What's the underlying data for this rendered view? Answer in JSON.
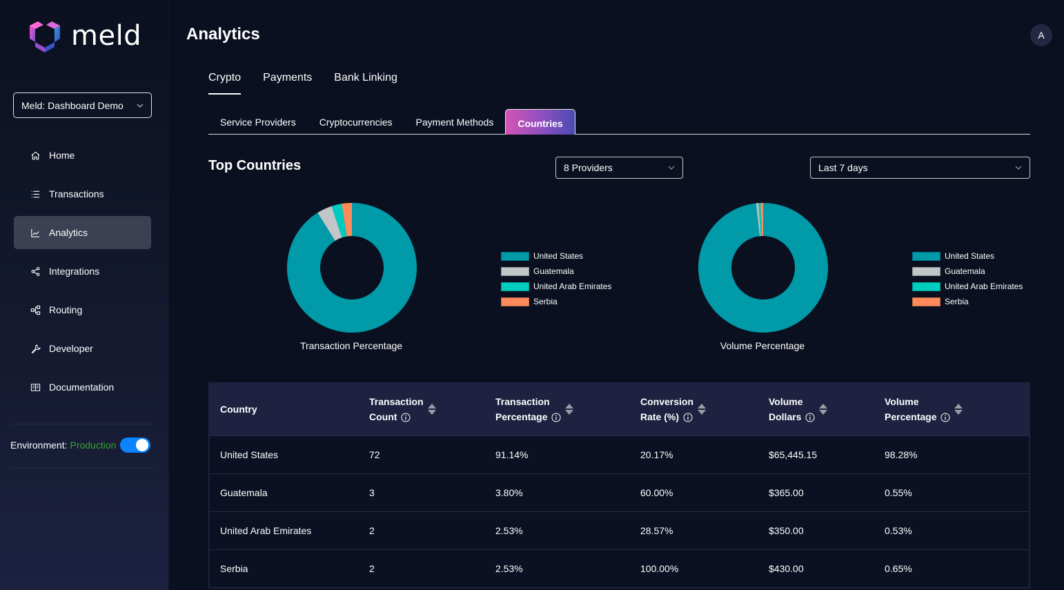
{
  "app": {
    "logo_text": "meld",
    "account_select": "Meld: Dashboard Demo",
    "avatar_initial": "A"
  },
  "sidebar": {
    "items": [
      {
        "label": "Home",
        "icon": "home-icon",
        "active": false
      },
      {
        "label": "Transactions",
        "icon": "list-icon",
        "active": false
      },
      {
        "label": "Analytics",
        "icon": "chart-line-icon",
        "active": true
      },
      {
        "label": "Integrations",
        "icon": "share-nodes-icon",
        "active": false
      },
      {
        "label": "Routing",
        "icon": "routing-icon",
        "active": false
      },
      {
        "label": "Developer",
        "icon": "wrench-icon",
        "active": false
      },
      {
        "label": "Documentation",
        "icon": "book-icon",
        "active": false
      }
    ],
    "environment_label": "Environment:",
    "environment_value": "Production",
    "environment_toggle_on": true
  },
  "header": {
    "title": "Analytics"
  },
  "top_tabs": [
    {
      "label": "Crypto",
      "active": true
    },
    {
      "label": "Payments",
      "active": false
    },
    {
      "label": "Bank Linking",
      "active": false
    }
  ],
  "sub_tabs": [
    {
      "label": "Service Providers",
      "active": false
    },
    {
      "label": "Cryptocurrencies",
      "active": false
    },
    {
      "label": "Payment Methods",
      "active": false
    },
    {
      "label": "Countries",
      "active": true
    }
  ],
  "section": {
    "title": "Top Countries",
    "providers_select": "8 Providers",
    "range_select": "Last 7 days"
  },
  "colors": {
    "United States": "#009aa8",
    "Guatemala": "#c3c6c8",
    "United Arab Emirates": "#00ccc0",
    "Serbia": "#ff8a5b",
    "accent_blue": "#0a84ff",
    "production_green": "#36a32e"
  },
  "chart_data": [
    {
      "type": "pie",
      "title": "Transaction Percentage",
      "categories": [
        "United States",
        "Guatemala",
        "United Arab Emirates",
        "Serbia"
      ],
      "values": [
        91.14,
        3.8,
        2.53,
        2.53
      ],
      "legend": "right"
    },
    {
      "type": "pie",
      "title": "Volume Percentage",
      "categories": [
        "United States",
        "Guatemala",
        "United Arab Emirates",
        "Serbia"
      ],
      "values": [
        98.28,
        0.55,
        0.53,
        0.65
      ],
      "legend": "right"
    }
  ],
  "table": {
    "columns": [
      {
        "label_line1": "Country",
        "label_line2": "",
        "sortable": false,
        "info": false
      },
      {
        "label_line1": "Transaction",
        "label_line2": "Count",
        "sortable": true,
        "info": true
      },
      {
        "label_line1": "Transaction",
        "label_line2": "Percentage",
        "sortable": true,
        "info": true
      },
      {
        "label_line1": "Conversion",
        "label_line2": "Rate (%)",
        "sortable": true,
        "info": true
      },
      {
        "label_line1": "Volume",
        "label_line2": "Dollars",
        "sortable": true,
        "info": true
      },
      {
        "label_line1": "Volume",
        "label_line2": "Percentage",
        "sortable": true,
        "info": true
      }
    ],
    "rows": [
      [
        "United States",
        "72",
        "91.14%",
        "20.17%",
        "$65,445.15",
        "98.28%"
      ],
      [
        "Guatemala",
        "3",
        "3.80%",
        "60.00%",
        "$365.00",
        "0.55%"
      ],
      [
        "United Arab Emirates",
        "2",
        "2.53%",
        "28.57%",
        "$350.00",
        "0.53%"
      ],
      [
        "Serbia",
        "2",
        "2.53%",
        "100.00%",
        "$430.00",
        "0.65%"
      ]
    ]
  }
}
